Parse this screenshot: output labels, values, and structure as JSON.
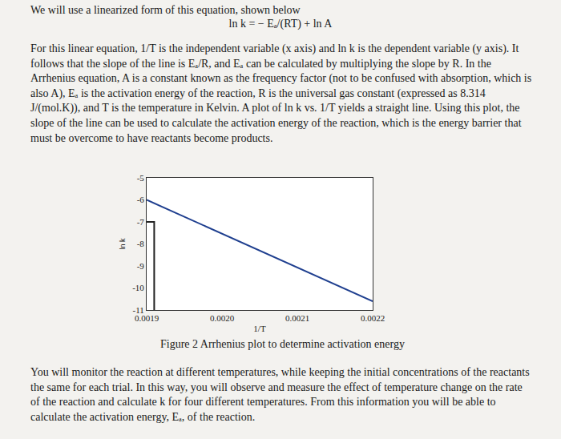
{
  "intro": "We will use a linearized form of this equation, shown below",
  "equation": "ln k = − Eₐ/(RT) + ln A",
  "paragraph": "For this linear equation, 1/T is the independent variable (x axis) and ln k is the dependent variable (y axis). It follows that the slope of the line is Eₐ/R, and Eₐ can be calculated by multiplying the slope by R. In the Arrhenius equation, A is a constant known as the frequency factor (not to be confused with absorption, which is also A), Eₐ is the activation energy of the reaction, R is the universal gas constant (expressed as 8.314 J/(mol.K)), and T is the temperature in Kelvin. A plot of ln k vs. 1/T yields a straight line. Using this plot, the slope of the line can be used to calculate the activation energy of the reaction, which is the energy barrier that must be overcome to have reactants become products.",
  "chart_data": {
    "type": "line",
    "x_label": "1/T",
    "y_label": "ln k",
    "series": [
      {
        "x": [
          0.0019,
          0.0022
        ],
        "values": [
          -6.0,
          -10.6
        ],
        "color": "#1f3f8f"
      },
      {
        "x": [
          0.0019,
          0.00191,
          0.00191
        ],
        "values": [
          -7,
          -7,
          -11
        ],
        "color": "#222222"
      }
    ],
    "xlim": [
      0.0019,
      0.0022
    ],
    "ylim": [
      -11,
      -5
    ],
    "xticks": [
      0.0019,
      {
        "value": 0.002,
        "label": "0.0020"
      },
      0.0021,
      0.0022
    ],
    "yticks": [
      -5,
      -6,
      -7,
      -8,
      -9,
      -10,
      -11
    ],
    "grid": false
  },
  "caption": "Figure 2 Arrhenius plot to determine activation energy",
  "closing": "You will monitor the reaction at different temperatures, while keeping the initial concentrations of the reactants the same for each trial. In this way, you will observe and measure the effect of temperature change on the rate of the reaction and calculate k for four different temperatures. From this information you will be able to calculate the activation energy, Eₐ, of the reaction."
}
